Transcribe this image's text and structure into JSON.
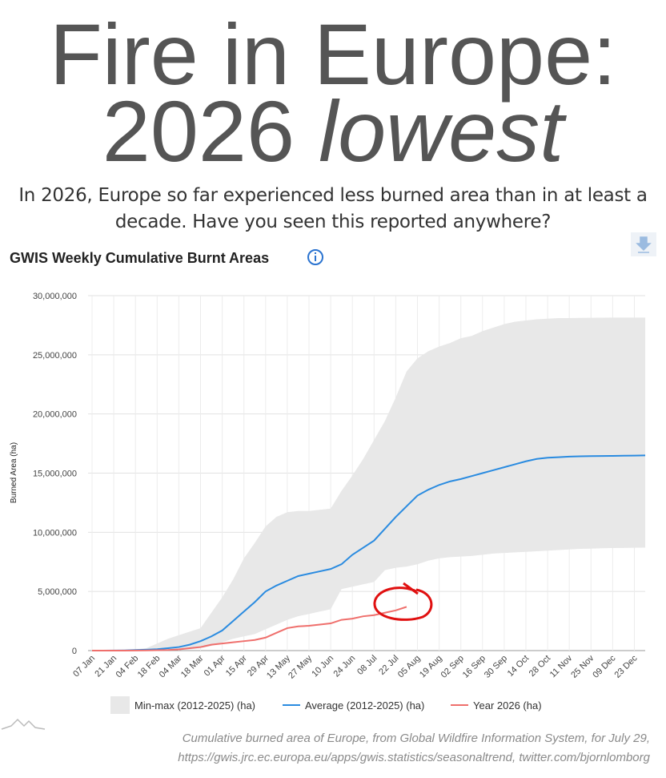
{
  "title_line1": "Fire in Europe:",
  "title_line2": "2026",
  "title_emphasis": "lowest",
  "subtitle": "In 2026, Europe so far experienced less burned area than in at least a decade. Have you seen this reported anywhere?",
  "caption_line1": "Cumulative burned area of Europe, from Global Wildfire Information System, for July 29,",
  "caption_line2": "https://gwis.jrc.ec.europa.eu/apps/gwis.statistics/seasonaltrend, twitter.com/bjornlomborg",
  "chart_data": {
    "type": "line",
    "title": "GWIS Weekly Cumulative Burnt Areas",
    "y_label": "Burned Area (ha)",
    "categories": [
      "07 Jan",
      null,
      "21 Jan",
      null,
      "04 Feb",
      null,
      "18 Feb",
      null,
      "04 Mar",
      null,
      "18 Mar",
      null,
      "01 Apr",
      null,
      "15 Apr",
      null,
      "29 Apr",
      null,
      "13 May",
      null,
      "27 May",
      null,
      "10 Jun",
      null,
      "24 Jun",
      null,
      "08 Jul",
      null,
      "22 Jul",
      null,
      "05 Aug",
      null,
      "19 Aug",
      null,
      "02 Sep",
      null,
      "16 Sep",
      null,
      "30 Sep",
      null,
      "14 Oct",
      null,
      "28 Oct",
      null,
      "11 Nov",
      null,
      "25 Nov",
      null,
      "09 Dec",
      null,
      "23 Dec",
      null
    ],
    "ylim": [
      0,
      30000000
    ],
    "yticks": [
      0,
      {
        "value": 5000000,
        "label": "5,000,000"
      },
      {
        "value": 10000000,
        "label": "10,000,000"
      },
      {
        "value": 15000000,
        "label": "15,000,000"
      },
      {
        "value": 20000000,
        "label": "20,000,000"
      },
      {
        "value": 25000000,
        "label": "25,000,000"
      },
      {
        "value": 30000000,
        "label": "30,000,000"
      }
    ],
    "grid": true,
    "band": {
      "name": "Min-max (2012-2025) (ha)",
      "color": "#e8e8e8",
      "max": [
        0,
        0,
        20000,
        50000,
        100000,
        200000,
        600000,
        1000000,
        1300000,
        1600000,
        1900000,
        3200000,
        4500000,
        6000000,
        7800000,
        9100000,
        10500000,
        11300000,
        11700000,
        11800000,
        11800000,
        11900000,
        12000000,
        13500000,
        14800000,
        16200000,
        17800000,
        19400000,
        21400000,
        23600000,
        24700000,
        25300000,
        25700000,
        26000000,
        26400000,
        26600000,
        27000000,
        27300000,
        27600000,
        27800000,
        27900000,
        28000000,
        28050000,
        28100000,
        28100000,
        28120000,
        28130000,
        28140000,
        28150000,
        28150000,
        28150000,
        28150000
      ],
      "min": [
        0,
        0,
        0,
        0,
        0,
        0,
        10000,
        20000,
        50000,
        100000,
        200000,
        400000,
        700000,
        1000000,
        1200000,
        1400000,
        1800000,
        2200000,
        2600000,
        2900000,
        3100000,
        3300000,
        3500000,
        5200000,
        5400000,
        5600000,
        5800000,
        6800000,
        7000000,
        7100000,
        7300000,
        7600000,
        7800000,
        7900000,
        7950000,
        8000000,
        8100000,
        8200000,
        8250000,
        8300000,
        8350000,
        8400000,
        8450000,
        8500000,
        8550000,
        8600000,
        8620000,
        8650000,
        8670000,
        8680000,
        8690000,
        8700000
      ]
    },
    "series": [
      {
        "name": "Average (2012-2025) (ha)",
        "color": "#2a8be0",
        "values": [
          0,
          0,
          10000,
          20000,
          50000,
          80000,
          120000,
          200000,
          300000,
          500000,
          800000,
          1200000,
          1700000,
          2500000,
          3300000,
          4100000,
          5000000,
          5500000,
          5900000,
          6300000,
          6500000,
          6700000,
          6900000,
          7300000,
          8100000,
          8700000,
          9300000,
          10300000,
          11300000,
          12200000,
          13100000,
          13600000,
          14000000,
          14300000,
          14500000,
          14750000,
          15000000,
          15250000,
          15500000,
          15750000,
          16000000,
          16200000,
          16300000,
          16350000,
          16400000,
          16420000,
          16440000,
          16450000,
          16460000,
          16470000,
          16480000,
          16500000
        ]
      },
      {
        "name": "Year 2026 (ha)",
        "color": "#ef6f6c",
        "values": [
          0,
          0,
          0,
          0,
          10000,
          20000,
          30000,
          50000,
          100000,
          200000,
          300000,
          500000,
          600000,
          700000,
          800000,
          900000,
          1100000,
          1500000,
          1900000,
          2050000,
          2100000,
          2200000,
          2300000,
          2600000,
          2700000,
          2900000,
          3000000,
          3200000,
          3400000,
          3700000,
          null,
          null,
          null,
          null,
          null,
          null,
          null,
          null,
          null,
          null,
          null,
          null,
          null,
          null,
          null,
          null,
          null,
          null,
          null,
          null,
          null,
          null
        ]
      }
    ]
  }
}
